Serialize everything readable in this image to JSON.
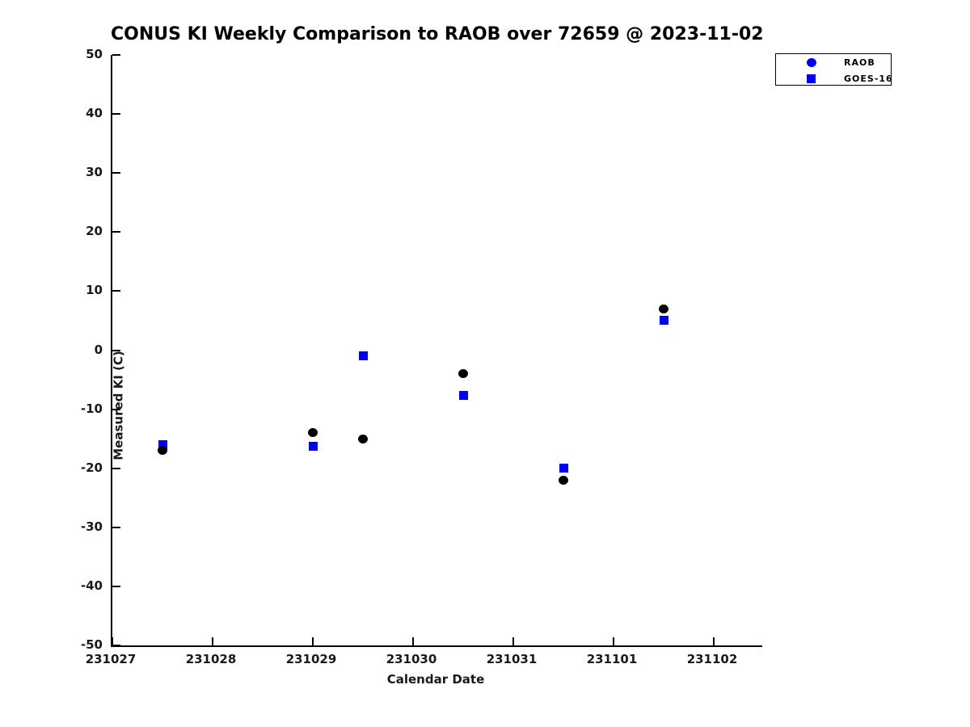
{
  "title": "CONUS KI Weekly Comparison to RAOB over 72659 @ 2023-11-02",
  "colors": {
    "marker_blue": "#0000EE",
    "raob_plot_marker": "#000000",
    "axis": "#000000"
  },
  "legend": {
    "items": [
      {
        "label": "RAOB",
        "marker": "circle",
        "marker_color": "#0000EE"
      },
      {
        "label": "GOES-16",
        "marker": "square",
        "marker_color": "#0000EE"
      }
    ]
  },
  "chart_data": {
    "type": "scatter",
    "title": "CONUS KI Weekly Comparison to RAOB over 72659 @ 2023-11-02",
    "xlabel": "Calendar Date",
    "ylabel": "Measured KI (C)",
    "x_tick_values": [
      231027,
      231028,
      231029,
      231030,
      231031,
      231101,
      231102
    ],
    "y_ticks": [
      50,
      40,
      30,
      20,
      10,
      0,
      -10,
      -20,
      -30,
      -40,
      -50
    ],
    "ylim": [
      -50,
      50
    ],
    "grid": false,
    "legend_position": "top-right",
    "series": [
      {
        "name": "GOES-16",
        "marker": "square",
        "plot_color": "#0000EE",
        "x": [
          231027.5,
          231029.0,
          231029.5,
          231030.5,
          231031.5,
          231101.5
        ],
        "y": [
          -16,
          -16.3,
          -1,
          -7.7,
          -20,
          5
        ]
      },
      {
        "name": "RAOB",
        "marker": "circle",
        "plot_color": "#000000",
        "x": [
          231027.5,
          231029.0,
          231029.5,
          231030.5,
          231031.5,
          231101.5
        ],
        "y": [
          -17,
          -14,
          -15,
          -4,
          -22,
          7
        ]
      }
    ]
  }
}
